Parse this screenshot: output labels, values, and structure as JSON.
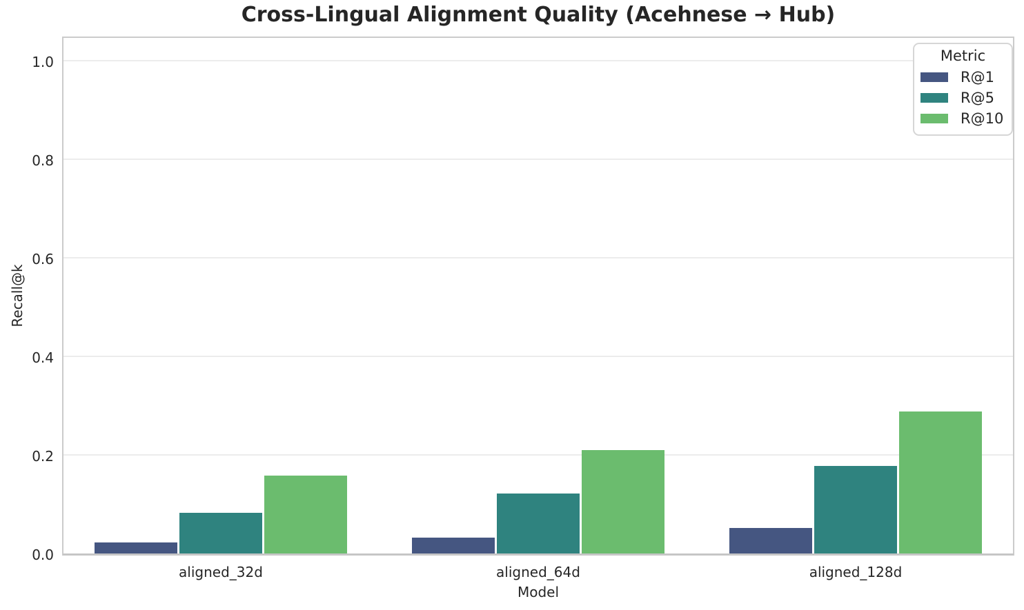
{
  "title": "Cross-Lingual Alignment Quality (Acehnese → Hub)",
  "chart_data": {
    "type": "bar",
    "categories": [
      "aligned_32d",
      "aligned_64d",
      "aligned_128d"
    ],
    "series": [
      {
        "name": "R@1",
        "color": "#455681",
        "values": [
          0.022,
          0.032,
          0.052
        ]
      },
      {
        "name": "R@5",
        "color": "#2f837f",
        "values": [
          0.082,
          0.122,
          0.178
        ]
      },
      {
        "name": "R@10",
        "color": "#6bbc6e",
        "values": [
          0.158,
          0.21,
          0.288
        ]
      }
    ],
    "xlabel": "Model",
    "ylabel": "Recall@k",
    "ylim": [
      0,
      1.05
    ],
    "yticks": [
      0.0,
      0.2,
      0.4,
      0.6,
      0.8,
      1.0
    ],
    "grid": "horizontal",
    "legend_title": "Metric",
    "legend_position": "upper right",
    "colors": {
      "gridline": "#ececec",
      "spine": "#cbcbcb",
      "text": "#262626",
      "legend_border": "#d6d6d6",
      "background": "#ffffff"
    }
  }
}
